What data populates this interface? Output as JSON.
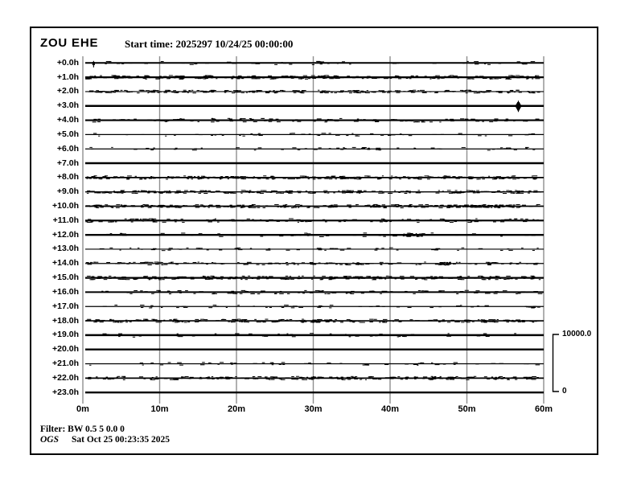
{
  "window": {
    "background": "#ffffff",
    "border_color": "#000000"
  },
  "header": {
    "station": "ZOU EHE",
    "start_time": "Start time: 2025297 10/24/25 00:00:00"
  },
  "footer": {
    "filter": "Filter: BW 0.5 5 0.0 0",
    "agency": "OGS",
    "timestamp": "Sat Oct 25 00:23:35 2025"
  },
  "chart_data": {
    "type": "line",
    "subtype": "helicorder-seismogram",
    "station": "ZOU EHE",
    "start_time_label": "Start time: 2025297 10/24/25 00:00:00",
    "rows": 24,
    "minutes_per_row": 60,
    "grid": true,
    "colors": {
      "trace": "#000000",
      "grid": "#8f8f8f",
      "text": "#000000"
    },
    "x_axis": {
      "tick_labels": [
        "0m",
        "10m",
        "20m",
        "30m",
        "40m",
        "50m",
        "60m"
      ],
      "tick_minutes": [
        0,
        10,
        20,
        30,
        40,
        50,
        60
      ]
    },
    "scale_bar": {
      "max_label": "10000.0",
      "min_label": "0",
      "span_rows": 4
    },
    "traces": [
      {
        "label": "+0.0h",
        "thickness": 2.0,
        "noise": "sparse",
        "events": [
          {
            "t_min": 1.4,
            "up": 2.5,
            "down": 5.5,
            "width": 2,
            "style": "spike"
          }
        ]
      },
      {
        "label": "+1.0h",
        "thickness": 2.2,
        "noise": "dense",
        "events": []
      },
      {
        "label": "+2.0h",
        "thickness": 1.2,
        "noise": "dense",
        "events": []
      },
      {
        "label": "+3.0h",
        "thickness": 2.5,
        "noise": "none",
        "events": [
          {
            "t_min": 56.7,
            "up": 6.5,
            "down": 7.5,
            "width": 7,
            "style": "spike"
          }
        ]
      },
      {
        "label": "+4.0h",
        "thickness": 2.2,
        "noise": "medium",
        "events": []
      },
      {
        "label": "+5.0h",
        "thickness": 1.2,
        "noise": "sparse",
        "events": []
      },
      {
        "label": "+6.0h",
        "thickness": 1.3,
        "noise": "sparse",
        "events": []
      },
      {
        "label": "+7.0h",
        "thickness": 2.5,
        "noise": "none",
        "events": []
      },
      {
        "label": "+8.0h",
        "thickness": 1.8,
        "noise": "dense",
        "events": []
      },
      {
        "label": "+9.0h",
        "thickness": 1.3,
        "noise": "dense",
        "events": []
      },
      {
        "label": "+10.0h",
        "thickness": 1.8,
        "noise": "dense",
        "events": [
          {
            "t_min": 52.0,
            "up": 1.5,
            "down": 1.5,
            "width": 50,
            "style": "cluster"
          }
        ]
      },
      {
        "label": "+11.0h",
        "thickness": 2.2,
        "noise": "medium",
        "events": []
      },
      {
        "label": "+12.0h",
        "thickness": 2.4,
        "noise": "sparse",
        "events": [
          {
            "t_min": 43.0,
            "up": 2.0,
            "down": 2.0,
            "width": 26,
            "style": "cluster"
          }
        ]
      },
      {
        "label": "+13.0h",
        "thickness": 1.2,
        "noise": "sparse",
        "events": []
      },
      {
        "label": "+14.0h",
        "thickness": 1.2,
        "noise": "medium",
        "events": [
          {
            "t_min": 35.5,
            "up": 1.5,
            "down": 1.5,
            "width": 8,
            "style": "cluster"
          },
          {
            "t_min": 47.0,
            "up": 2.0,
            "down": 2.0,
            "width": 16,
            "style": "cluster"
          }
        ]
      },
      {
        "label": "+15.0h",
        "thickness": 2.2,
        "noise": "dense",
        "events": []
      },
      {
        "label": "+16.0h",
        "thickness": 2.0,
        "noise": "medium",
        "events": []
      },
      {
        "label": "+17.0h",
        "thickness": 1.2,
        "noise": "sparse",
        "events": []
      },
      {
        "label": "+18.0h",
        "thickness": 1.6,
        "noise": "dense",
        "events": []
      },
      {
        "label": "+19.0h",
        "thickness": 2.4,
        "noise": "sparse",
        "events": []
      },
      {
        "label": "+20.0h",
        "thickness": 2.4,
        "noise": "none",
        "events": []
      },
      {
        "label": "+21.0h",
        "thickness": 1.2,
        "noise": "sparse",
        "events": []
      },
      {
        "label": "+22.0h",
        "thickness": 1.8,
        "noise": "dense",
        "events": []
      },
      {
        "label": "+23.0h",
        "thickness": 2.4,
        "noise": "none",
        "events": []
      }
    ]
  }
}
